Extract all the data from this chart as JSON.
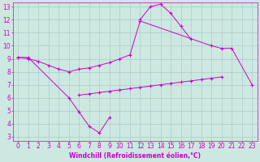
{
  "xlabel": "Windchill (Refroidissement éolien,°C)",
  "background_color": "#cce8e0",
  "grid_color": "#aacccc",
  "line_color": "#cc00cc",
  "xlim_min": -0.5,
  "xlim_max": 23.5,
  "ylim_min": 2.7,
  "ylim_max": 13.3,
  "xticks": [
    0,
    1,
    2,
    3,
    4,
    5,
    6,
    7,
    8,
    9,
    10,
    11,
    12,
    13,
    14,
    15,
    16,
    17,
    18,
    19,
    20,
    21,
    22,
    23
  ],
  "yticks": [
    3,
    4,
    5,
    6,
    7,
    8,
    9,
    10,
    11,
    12,
    13
  ],
  "line1_x": [
    0,
    1,
    5,
    6,
    7,
    8,
    9
  ],
  "line1_y": [
    9.1,
    9.1,
    6.0,
    4.9,
    3.8,
    3.3,
    4.5
  ],
  "line2_x": [
    6,
    7,
    8,
    9,
    10,
    11,
    12,
    13,
    14,
    15,
    16,
    17,
    18,
    19,
    20
  ],
  "line2_y": [
    6.2,
    6.3,
    6.4,
    6.5,
    6.6,
    6.7,
    6.8,
    6.9,
    7.0,
    7.1,
    7.2,
    7.3,
    7.4,
    7.5,
    7.6
  ],
  "line3_x": [
    0,
    1,
    2,
    3,
    4,
    5,
    6,
    7,
    8,
    9,
    10,
    11,
    12,
    19,
    20,
    21,
    23
  ],
  "line3_y": [
    9.1,
    9.0,
    8.8,
    8.5,
    8.2,
    8.0,
    8.2,
    8.3,
    8.5,
    8.7,
    9.0,
    9.3,
    11.9,
    10.0,
    9.8,
    9.8,
    7.0
  ],
  "line4_x": [
    12,
    13,
    14,
    15,
    16,
    17
  ],
  "line4_y": [
    12.0,
    13.0,
    13.2,
    12.5,
    11.5,
    10.5
  ],
  "tick_fontsize": 5.5,
  "xlabel_fontsize": 5.5,
  "linewidth": 0.7,
  "markersize": 2.5,
  "markeredgewidth": 0.8
}
